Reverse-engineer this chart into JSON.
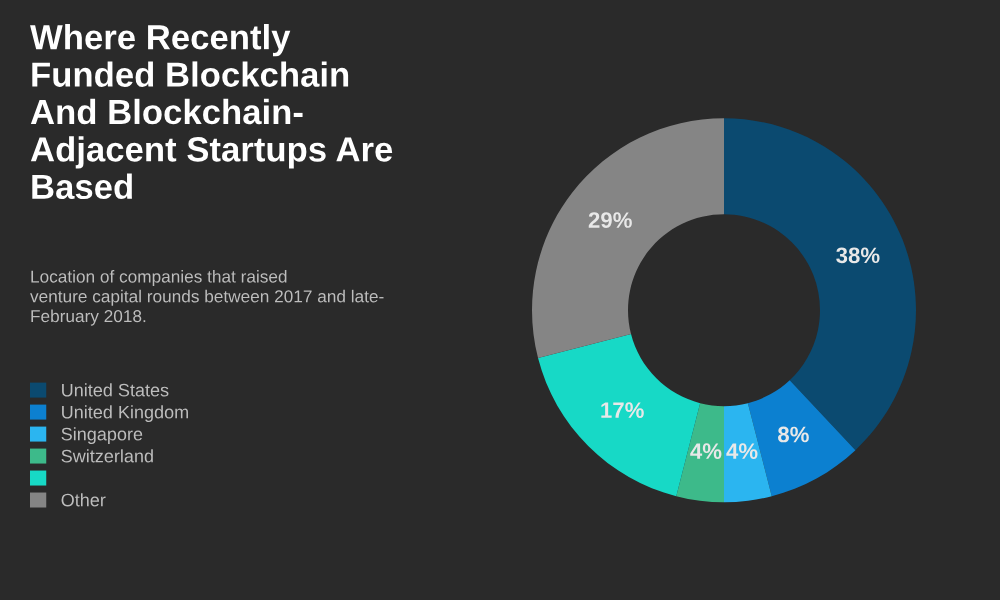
{
  "chart_data": {
    "type": "donut",
    "title": "Where Recently\nFunded Blockchain\nAnd Blockchain-\nAdjacent Startups Are\nBased",
    "subtitle": "Location of companies that raised\nventure capital rounds between 2017 and late-\nFebruary 2018.",
    "categories": [
      "United States",
      "United Kingdom",
      "Singapore",
      "Switzerland",
      null,
      "Other"
    ],
    "values": [
      38,
      8,
      4,
      4,
      17,
      29
    ],
    "colors": [
      "#0b4a70",
      "#0c80d0",
      "#2bb5f0",
      "#3dba8a",
      "#17d9c6",
      "#858585"
    ],
    "value_labels": [
      "38%",
      "8%",
      "4%",
      "4%",
      "17%",
      "29%"
    ],
    "legend": "bottom left"
  }
}
